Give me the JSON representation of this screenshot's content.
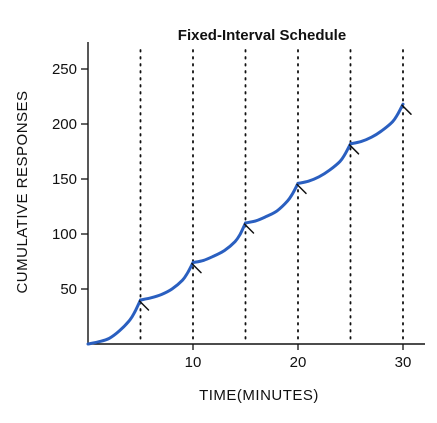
{
  "chart_data": {
    "type": "line",
    "title": "Fixed-Interval Schedule",
    "xlabel": "TIME(MINUTES)",
    "ylabel": "CUMULATIVE RESPONSES",
    "xlim": [
      0,
      32
    ],
    "ylim": [
      0,
      270
    ],
    "x_ticks": [
      10,
      20,
      30
    ],
    "y_ticks": [
      50,
      100,
      150,
      200,
      250
    ],
    "interval_markers": [
      5,
      10,
      15,
      20,
      25,
      30
    ],
    "grid": false,
    "line_color": "#2a5fc0",
    "series": [
      {
        "segments": [
          {
            "x": [
              0,
              1,
              2,
              3,
              4,
              4.5,
              5
            ],
            "y": [
              0,
              2,
              5,
              12,
              22,
              30,
              40
            ]
          },
          {
            "x": [
              5,
              6,
              7,
              8,
              9,
              9.5,
              10
            ],
            "y": [
              40,
              42,
              45,
              50,
              58,
              65,
              74
            ]
          },
          {
            "x": [
              10,
              11,
              12,
              13,
              14,
              14.5,
              15
            ],
            "y": [
              74,
              76,
              80,
              85,
              93,
              100,
              110
            ]
          },
          {
            "x": [
              15,
              16,
              17,
              18,
              19,
              19.5,
              20
            ],
            "y": [
              110,
              112,
              116,
              121,
              130,
              137,
              146
            ]
          },
          {
            "x": [
              20,
              21,
              22,
              23,
              24,
              24.5,
              25
            ],
            "y": [
              146,
              148,
              152,
              158,
              166,
              173,
              182
            ]
          },
          {
            "x": [
              25,
              26,
              27,
              28,
              29,
              29.5,
              30
            ],
            "y": [
              182,
              184,
              188,
              194,
              202,
              209,
              218
            ]
          }
        ],
        "reinforcement_x": [
          5,
          10,
          15,
          20,
          25,
          30
        ]
      }
    ]
  }
}
